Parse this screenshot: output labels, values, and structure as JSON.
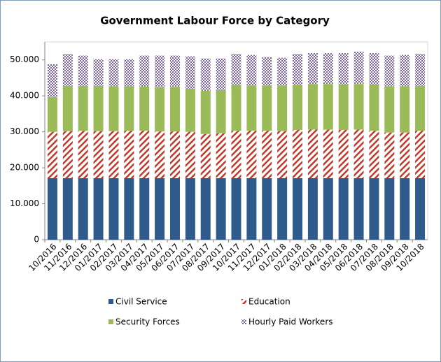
{
  "chart_data": {
    "type": "stacked-bar",
    "title": "Government Labour Force by Category",
    "categories": [
      "10/2016",
      "11/2016",
      "12/2016",
      "01/2017",
      "02/2017",
      "03/2017",
      "04/2017",
      "05/2017",
      "06/2017",
      "07/2017",
      "08/2017",
      "09/2017",
      "10/2017",
      "11/2017",
      "12/2017",
      "01/2018",
      "02/2018",
      "03/2018",
      "04/2018",
      "05/2018",
      "06/2018",
      "07/2018",
      "08/2018",
      "09/2018",
      "10/2018"
    ],
    "series": [
      {
        "name": "Civil Service",
        "color": "#2e5a8c",
        "fill_style": "solid",
        "values": [
          17100,
          17100,
          17100,
          17100,
          17100,
          17100,
          17100,
          17100,
          17100,
          17100,
          17100,
          17100,
          17100,
          17100,
          17100,
          17100,
          17100,
          17100,
          17100,
          17100,
          17100,
          17100,
          17100,
          17100,
          17100
        ]
      },
      {
        "name": "Education",
        "color": "#c0392b",
        "fill_style": "diagonal",
        "values": [
          12900,
          13100,
          13200,
          13100,
          13100,
          13200,
          13200,
          13000,
          13000,
          12900,
          12300,
          12500,
          13200,
          13200,
          13200,
          13100,
          13400,
          13500,
          13500,
          13400,
          13500,
          13200,
          12700,
          12700,
          13200
        ]
      },
      {
        "name": "Security Forces",
        "color": "#9bbb59",
        "fill_style": "solid",
        "values": [
          9700,
          12600,
          12500,
          12600,
          12500,
          12400,
          12300,
          12300,
          12400,
          12000,
          12000,
          12000,
          12800,
          12600,
          12600,
          12700,
          12600,
          12700,
          12700,
          12700,
          12700,
          12900,
          12900,
          12900,
          12500
        ]
      },
      {
        "name": "Hourly Paid Workers",
        "color": "#7e649e",
        "fill_style": "checker",
        "values": [
          9100,
          8900,
          8400,
          7400,
          7500,
          7500,
          8600,
          8800,
          8700,
          9000,
          9000,
          8800,
          8600,
          8500,
          7900,
          7700,
          8600,
          8600,
          8600,
          8700,
          9000,
          8700,
          8500,
          8700,
          8900
        ]
      }
    ],
    "ylim": [
      0,
      55000
    ],
    "yticks": [
      0,
      {
        "value": 10000,
        "label": "10.000"
      },
      {
        "value": 20000,
        "label": "20.000"
      },
      {
        "value": 30000,
        "label": "30.000"
      },
      {
        "value": 40000,
        "label": "40.000"
      },
      {
        "value": 50000,
        "label": "50.000"
      }
    ],
    "grid": false,
    "legend_position": "bottom"
  }
}
